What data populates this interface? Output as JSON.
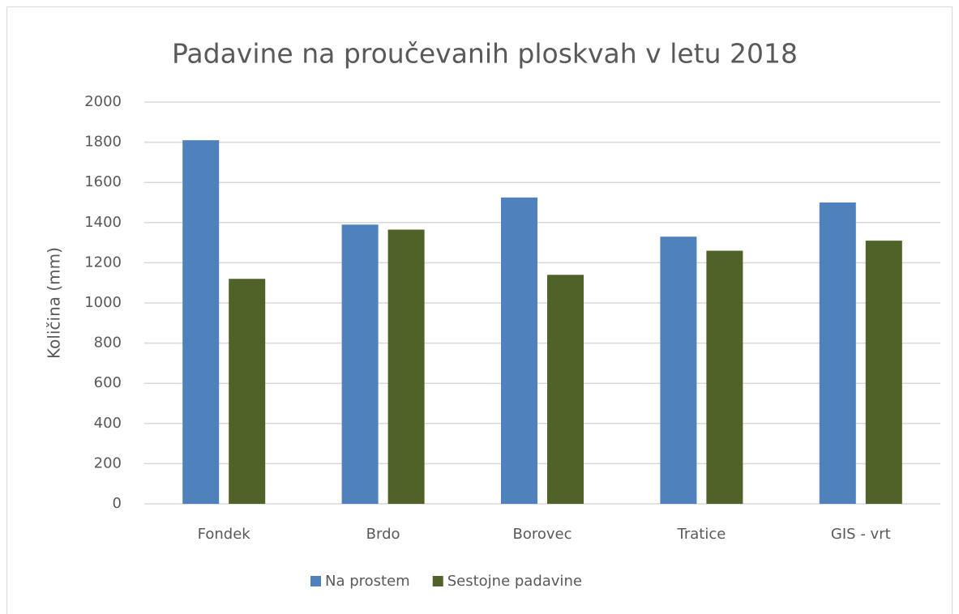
{
  "chart_data": {
    "type": "bar",
    "title": "Padavine na proučevanih ploskvah v letu 2018",
    "y_label": "Količina (mm)",
    "categories": [
      "Fondek",
      "Brdo",
      "Borovec",
      "Tratice",
      "GIS - vrt"
    ],
    "series": [
      {
        "name": "Na prostem",
        "color": "#4f81bd",
        "values": [
          1810,
          1390,
          1525,
          1330,
          1500
        ]
      },
      {
        "name": "Sestojne padavine",
        "color": "#4f6228",
        "values": [
          1120,
          1365,
          1140,
          1260,
          1310
        ]
      }
    ],
    "ylim": [
      0,
      2000
    ],
    "yticks": [
      0,
      200,
      400,
      600,
      800,
      1000,
      1200,
      1400,
      1600,
      1800,
      2000
    ],
    "grid": true,
    "legend": "bottom"
  }
}
